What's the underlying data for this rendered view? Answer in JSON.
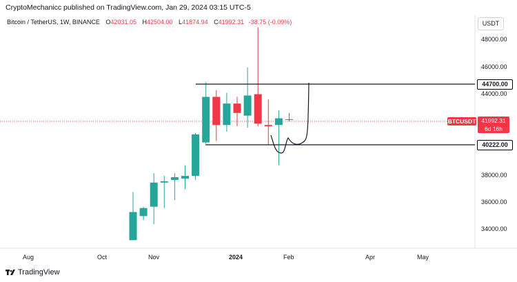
{
  "header": {
    "publish_line": "CryptoMechanicc published on TradingView.com, Jan 29, 2024 03:15 UTC-5"
  },
  "legend": {
    "symbol": "Bitcoin / TetherUS, 1W, BINANCE",
    "open_key": "O",
    "open": "42031.05",
    "high_key": "H",
    "high": "42504.00",
    "low_key": "L",
    "low": "41874.94",
    "close_key": "C",
    "close": "41992.31",
    "change": "-38.75 (-0.09%)"
  },
  "currency_button": "USDT",
  "price_axis": {
    "labels": [
      "48000.00",
      "46000.00",
      "44000.00",
      "38000.00",
      "36000.00",
      "34000.00"
    ],
    "marked_levels": [
      "44700.00",
      "40222.00"
    ],
    "ticker": "BTCUSDT",
    "last_price": "41992.31",
    "countdown": "6d 16h"
  },
  "time_axis": {
    "labels": [
      "Aug",
      "Oct",
      "Nov",
      "2024",
      "Feb",
      "Apr",
      "May"
    ]
  },
  "footer": {
    "brand": "TradingView"
  },
  "colors": {
    "up": "#26a69a",
    "down": "#f23645",
    "line": "#131722"
  },
  "chart_data": {
    "type": "candlestick",
    "title": "Bitcoin / TetherUS, 1W, BINANCE",
    "ylim": [
      32400,
      49800
    ],
    "candles": [
      {
        "o": 33000,
        "h": 36600,
        "l": 33000,
        "c": 35100
      },
      {
        "o": 34800,
        "h": 35500,
        "l": 34500,
        "c": 35400
      },
      {
        "o": 35500,
        "h": 38000,
        "l": 34200,
        "c": 37300
      },
      {
        "o": 37300,
        "h": 37800,
        "l": 35400,
        "c": 37400
      },
      {
        "o": 37500,
        "h": 38000,
        "l": 36000,
        "c": 37700
      },
      {
        "o": 37600,
        "h": 38600,
        "l": 36800,
        "c": 37800
      },
      {
        "o": 37800,
        "h": 41000,
        "l": 37500,
        "c": 40900
      },
      {
        "o": 40300,
        "h": 44800,
        "l": 40200,
        "c": 43700
      },
      {
        "o": 43700,
        "h": 44200,
        "l": 40400,
        "c": 41600
      },
      {
        "o": 41600,
        "h": 44000,
        "l": 41100,
        "c": 43200
      },
      {
        "o": 43200,
        "h": 43700,
        "l": 41500,
        "c": 42500
      },
      {
        "o": 42300,
        "h": 45900,
        "l": 41400,
        "c": 43800
      },
      {
        "o": 43900,
        "h": 48900,
        "l": 41500,
        "c": 41700
      },
      {
        "o": 41600,
        "h": 43500,
        "l": 40100,
        "c": 41500
      },
      {
        "o": 41600,
        "h": 42700,
        "l": 38600,
        "c": 42100
      },
      {
        "o": 42031.05,
        "h": 42504,
        "l": 41874.94,
        "c": 41992.31
      }
    ],
    "levels": [
      44700,
      40222
    ],
    "last_price": 41992.31
  }
}
